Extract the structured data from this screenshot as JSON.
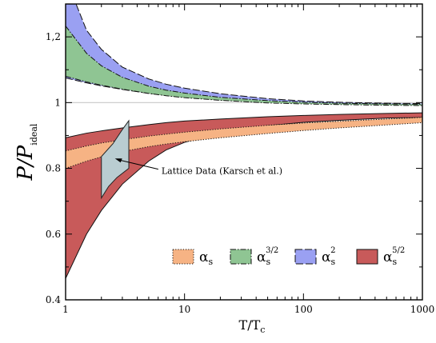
{
  "chart_data": {
    "type": "area",
    "xscale": "log",
    "xlim": [
      1,
      1000
    ],
    "ylim": [
      0.4,
      1.3
    ],
    "xlabel_main": "T/T",
    "xlabel_sub": "c",
    "ylabel_main": "P/P",
    "ylabel_sub": "ideal",
    "x_ticks": [
      {
        "v": 1,
        "label": "1"
      },
      {
        "v": 10,
        "label": "10"
      },
      {
        "v": 100,
        "label": "100"
      },
      {
        "v": 1000,
        "label": "1000"
      }
    ],
    "y_ticks": [
      {
        "v": 0.4,
        "label": "0.4"
      },
      {
        "v": 0.6,
        "label": "0.6"
      },
      {
        "v": 0.8,
        "label": "0.8"
      },
      {
        "v": 1.0,
        "label": "1"
      },
      {
        "v": 1.2,
        "label": "1,2"
      }
    ],
    "reference_line": 1.0,
    "bands": [
      {
        "id": "a52",
        "legend_main": "α",
        "legend_sub": "s",
        "legend_sup": "5/2",
        "fill": "#c85a5a",
        "dash": "none",
        "x": [
          1,
          1.5,
          2,
          3,
          5,
          7,
          10,
          20,
          50,
          100,
          200,
          500,
          1000
        ],
        "lower": [
          0.465,
          0.6,
          0.672,
          0.752,
          0.822,
          0.856,
          0.879,
          0.908,
          0.93,
          0.94,
          0.946,
          0.953,
          0.955
        ],
        "upper": [
          0.893,
          0.907,
          0.914,
          0.923,
          0.933,
          0.939,
          0.944,
          0.95,
          0.957,
          0.961,
          0.964,
          0.967,
          0.969
        ]
      },
      {
        "id": "a1",
        "legend_main": "α",
        "legend_sub": "s",
        "legend_sup": "",
        "fill": "#f6b384",
        "dash": "1.2,2",
        "x": [
          1,
          1.5,
          2,
          3,
          5,
          7,
          10,
          20,
          50,
          100,
          200,
          500,
          1000
        ],
        "lower": [
          0.8,
          0.822,
          0.835,
          0.851,
          0.866,
          0.874,
          0.881,
          0.893,
          0.906,
          0.915,
          0.923,
          0.932,
          0.939
        ],
        "upper": [
          0.853,
          0.868,
          0.877,
          0.887,
          0.898,
          0.904,
          0.91,
          0.92,
          0.931,
          0.938,
          0.943,
          0.95,
          0.955
        ]
      },
      {
        "id": "a2",
        "legend_main": "α",
        "legend_sub": "s",
        "legend_sup": "2",
        "fill": "#9aa0f2",
        "dash": "9,3",
        "x": [
          1,
          1.5,
          2,
          3,
          5,
          7,
          10,
          20,
          50,
          100,
          200,
          500,
          1000
        ],
        "lower": [
          1.075,
          1.06,
          1.051,
          1.04,
          1.028,
          1.022,
          1.016,
          1.008,
          1.001,
          0.998,
          0.996,
          0.994,
          0.993
        ],
        "upper": [
          1.38,
          1.22,
          1.162,
          1.108,
          1.072,
          1.056,
          1.044,
          1.027,
          1.012,
          1.005,
          1.001,
          0.998,
          0.997
        ]
      },
      {
        "id": "a32",
        "legend_main": "α",
        "legend_sub": "s",
        "legend_sup": "3/2",
        "fill": "#8fc593",
        "dash": "7,2,1.5,2",
        "x": [
          1,
          1.5,
          2,
          3,
          5,
          7,
          10,
          20,
          50,
          100,
          200,
          500,
          1000
        ],
        "lower": [
          1.08,
          1.063,
          1.053,
          1.041,
          1.028,
          1.021,
          1.015,
          1.007,
          0.999,
          0.996,
          0.994,
          0.992,
          0.991
        ],
        "upper": [
          1.233,
          1.15,
          1.112,
          1.077,
          1.05,
          1.038,
          1.029,
          1.016,
          1.006,
          1.001,
          0.998,
          0.996,
          0.995
        ]
      }
    ],
    "lattice": {
      "label": "Lattice Data (Karsch et al.)",
      "fill": "#b9cdd1",
      "x": [
        2,
        2.3,
        2.7,
        3.4,
        3.4,
        3.0,
        2.5,
        2.0
      ],
      "y": [
        0.71,
        0.745,
        0.772,
        0.8,
        0.945,
        0.918,
        0.875,
        0.836
      ]
    }
  }
}
